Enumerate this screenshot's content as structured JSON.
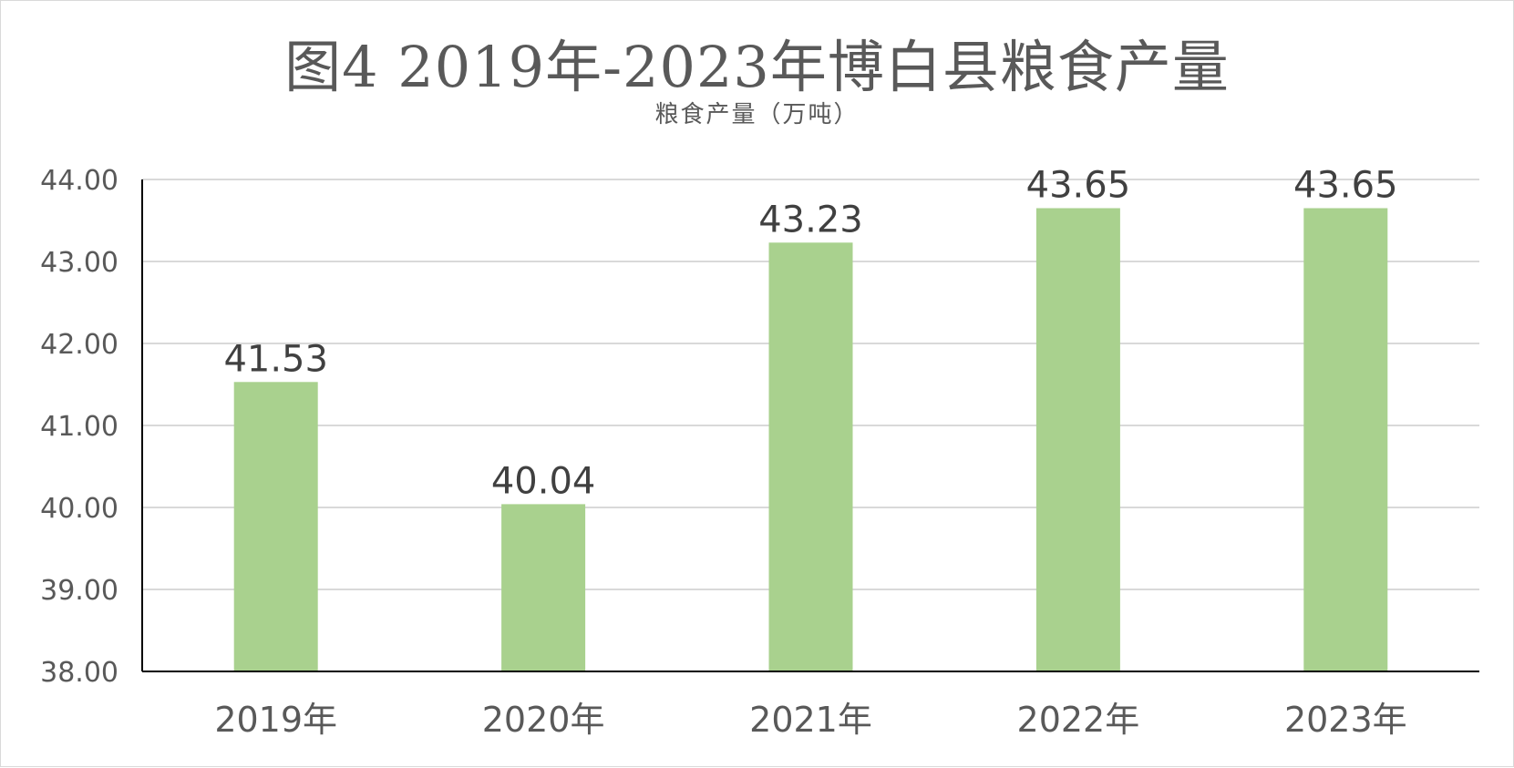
{
  "chart_data": {
    "type": "bar",
    "title": "图4 2019年-2023年博白县粮食产量",
    "subtitle": "粮食产量（万吨）",
    "categories": [
      "2019年",
      "2020年",
      "2021年",
      "2022年",
      "2023年"
    ],
    "values": [
      41.53,
      40.04,
      43.23,
      43.65,
      43.65
    ],
    "value_labels": [
      "41.53",
      "40.04",
      "43.23",
      "43.65",
      "43.65"
    ],
    "xlabel": "",
    "ylabel": "",
    "ylim": [
      38,
      44
    ],
    "yticks": [
      "38.00",
      "39.00",
      "40.00",
      "41.00",
      "42.00",
      "43.00",
      "44.00"
    ],
    "grid": true,
    "legend": "none",
    "colors": {
      "bar": "#a9d18e",
      "grid": "#d9d9d9",
      "axis": "#000000"
    }
  }
}
